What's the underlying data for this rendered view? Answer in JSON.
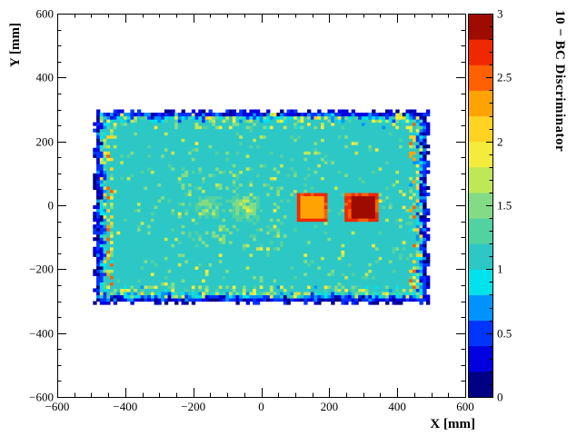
{
  "chart_data": {
    "type": "heatmap",
    "title": "",
    "xlabel": "X [mm]",
    "ylabel": "Y [mm]",
    "zlabel": "10 − BC Discriminator",
    "xlim": [
      -600,
      600
    ],
    "ylim": [
      -600,
      600
    ],
    "zlim": [
      0,
      3
    ],
    "grid": false,
    "colorbar_position": "right",
    "x_ticks": [
      -600,
      -400,
      -200,
      0,
      200,
      400,
      600
    ],
    "x_tick_labels": [
      "−600",
      "−400",
      "−200",
      "0",
      "200",
      "400",
      "600"
    ],
    "y_ticks": [
      600,
      400,
      200,
      0,
      -200,
      -400,
      -600
    ],
    "y_tick_labels": [
      "600",
      "400",
      "200",
      "0",
      "−200",
      "−400",
      "−600"
    ],
    "z_ticks": [
      0,
      0.5,
      1,
      1.5,
      2,
      2.5,
      3
    ],
    "z_tick_labels": [
      "0",
      "0.5",
      "1",
      "1.5",
      "2",
      "2.5",
      "3"
    ],
    "palette": [
      "#000084",
      "#0000e1",
      "#0035ff",
      "#0093ff",
      "#00e3ec",
      "#2dc8c5",
      "#52d1a1",
      "#83dc85",
      "#bfe857",
      "#f3ec3c",
      "#ffd321",
      "#ffa305",
      "#ff6000",
      "#f02800",
      "#9e0c00"
    ],
    "detector": {
      "x_range": [
        -480,
        480
      ],
      "y_range": [
        -295,
        290
      ],
      "base_value": 1.1,
      "cell_mm": 10
    },
    "hot_spots": [
      {
        "style": "speckled",
        "x": -155,
        "y": -5,
        "width": 85,
        "height": 85,
        "value": 1.7
      },
      {
        "style": "speckled",
        "x": -42,
        "y": -5,
        "width": 95,
        "height": 95,
        "value": 1.9
      },
      {
        "style": "solid",
        "x": 150,
        "y": -3,
        "width": 95,
        "height": 90,
        "core_value": 2.32,
        "ring_value": 2.62
      },
      {
        "style": "solid",
        "x": 297,
        "y": -3,
        "width": 95,
        "height": 90,
        "core_value": 2.92,
        "ring_value": 2.62
      }
    ]
  }
}
